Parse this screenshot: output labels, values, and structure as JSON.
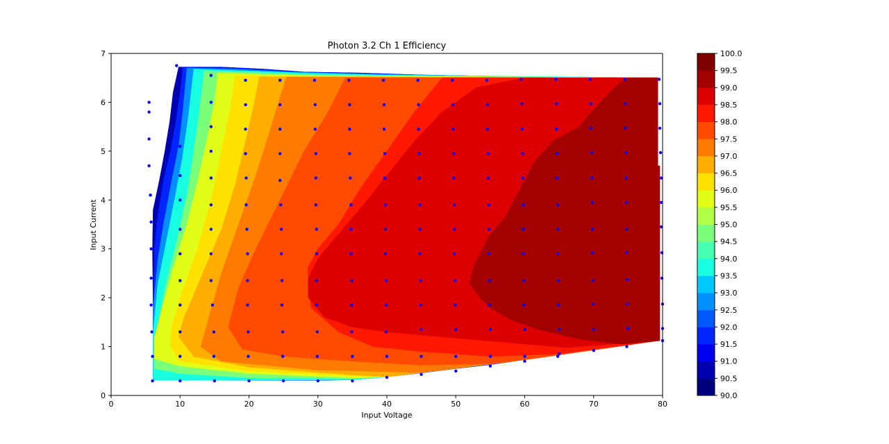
{
  "chart_data": {
    "type": "contour",
    "title": "Photon 3.2 Ch 1 Efficiency",
    "xlabel": "Input Voltage",
    "ylabel": "Input Current",
    "xlim": [
      0,
      80
    ],
    "ylim": [
      0,
      7
    ],
    "xticks": [
      "0",
      "10",
      "20",
      "30",
      "40",
      "50",
      "60",
      "70",
      "80"
    ],
    "yticks": [
      "0",
      "1",
      "2",
      "3",
      "4",
      "5",
      "6",
      "7"
    ],
    "colorbar_levels": [
      "90.0",
      "90.5",
      "91.0",
      "91.5",
      "92.0",
      "92.5",
      "93.0",
      "93.5",
      "94.0",
      "94.5",
      "95.0",
      "95.5",
      "96.0",
      "96.5",
      "97.0",
      "97.5",
      "98.0",
      "98.5",
      "99.0",
      "99.5",
      "100.0"
    ],
    "colorbar_colors": [
      "#00007f",
      "#0000b2",
      "#0000f0",
      "#0024ff",
      "#0058ff",
      "#0090ff",
      "#00c8ff",
      "#16ffe1",
      "#46ffb1",
      "#7bff7b",
      "#b1ff46",
      "#e1ff16",
      "#ffe200",
      "#ffad00",
      "#ff7a00",
      "#ff4a00",
      "#ff1800",
      "#dd0000",
      "#a30000",
      "#800000"
    ],
    "colormap": "jet",
    "grid": false,
    "measurement_points": [
      [
        5.5,
        6.0
      ],
      [
        5.5,
        5.8
      ],
      [
        5.5,
        5.25
      ],
      [
        5.5,
        4.7
      ],
      [
        5.7,
        4.1
      ],
      [
        5.8,
        3.55
      ],
      [
        5.8,
        3.0
      ],
      [
        5.8,
        2.4
      ],
      [
        5.8,
        1.85
      ],
      [
        5.9,
        1.3
      ],
      [
        6.0,
        0.8
      ],
      [
        6.0,
        0.3
      ],
      [
        9.5,
        6.75
      ],
      [
        10,
        5.1
      ],
      [
        10,
        4.5
      ],
      [
        10,
        4.0
      ],
      [
        10,
        3.4
      ],
      [
        10,
        2.9
      ],
      [
        10,
        2.35
      ],
      [
        10,
        1.85
      ],
      [
        10,
        1.3
      ],
      [
        10,
        0.8
      ],
      [
        10,
        0.3
      ],
      [
        14.5,
        6.55
      ],
      [
        14.5,
        6.0
      ],
      [
        14.5,
        5.5
      ],
      [
        14.5,
        5.0
      ],
      [
        14.5,
        4.45
      ],
      [
        14.5,
        3.9
      ],
      [
        14.5,
        3.4
      ],
      [
        14.5,
        2.9
      ],
      [
        14.5,
        2.35
      ],
      [
        14.7,
        1.85
      ],
      [
        14.9,
        1.3
      ],
      [
        14.9,
        0.8
      ],
      [
        15,
        0.3
      ],
      [
        19.5,
        6.45
      ],
      [
        19.5,
        5.95
      ],
      [
        19.5,
        5.45
      ],
      [
        19.5,
        4.95
      ],
      [
        19.6,
        4.45
      ],
      [
        19.6,
        3.9
      ],
      [
        19.7,
        3.4
      ],
      [
        19.8,
        2.9
      ],
      [
        19.8,
        2.35
      ],
      [
        19.8,
        1.85
      ],
      [
        19.9,
        1.3
      ],
      [
        19.9,
        0.8
      ],
      [
        20,
        0.3
      ],
      [
        24.5,
        6.45
      ],
      [
        24.5,
        5.95
      ],
      [
        24.5,
        5.45
      ],
      [
        24.5,
        4.95
      ],
      [
        24.5,
        4.4
      ],
      [
        24.6,
        3.9
      ],
      [
        24.7,
        3.4
      ],
      [
        24.7,
        2.9
      ],
      [
        24.8,
        2.35
      ],
      [
        24.8,
        1.85
      ],
      [
        24.9,
        1.3
      ],
      [
        24.9,
        0.8
      ],
      [
        25,
        0.3
      ],
      [
        29.5,
        6.45
      ],
      [
        29.6,
        5.95
      ],
      [
        29.6,
        5.45
      ],
      [
        29.7,
        4.95
      ],
      [
        29.7,
        4.45
      ],
      [
        29.7,
        3.9
      ],
      [
        29.8,
        3.4
      ],
      [
        29.8,
        2.9
      ],
      [
        29.8,
        2.35
      ],
      [
        29.8,
        1.85
      ],
      [
        29.9,
        1.3
      ],
      [
        29.9,
        0.8
      ],
      [
        30,
        0.3
      ],
      [
        34.5,
        6.45
      ],
      [
        34.6,
        5.95
      ],
      [
        34.6,
        5.45
      ],
      [
        34.6,
        4.95
      ],
      [
        34.7,
        4.45
      ],
      [
        34.8,
        3.9
      ],
      [
        34.8,
        3.4
      ],
      [
        34.8,
        2.9
      ],
      [
        34.9,
        2.35
      ],
      [
        34.9,
        1.85
      ],
      [
        34.9,
        1.3
      ],
      [
        35,
        0.8
      ],
      [
        35,
        0.3
      ],
      [
        39.5,
        6.45
      ],
      [
        39.6,
        5.95
      ],
      [
        39.6,
        5.45
      ],
      [
        39.7,
        4.95
      ],
      [
        39.7,
        4.45
      ],
      [
        39.8,
        3.9
      ],
      [
        39.8,
        3.4
      ],
      [
        39.8,
        2.9
      ],
      [
        39.9,
        2.35
      ],
      [
        39.9,
        1.85
      ],
      [
        39.9,
        1.3
      ],
      [
        40,
        0.8
      ],
      [
        40,
        0.37
      ],
      [
        44.5,
        6.45
      ],
      [
        44.6,
        5.95
      ],
      [
        44.6,
        5.45
      ],
      [
        44.7,
        4.95
      ],
      [
        44.7,
        4.45
      ],
      [
        44.8,
        3.9
      ],
      [
        44.8,
        3.4
      ],
      [
        44.8,
        2.9
      ],
      [
        44.9,
        2.35
      ],
      [
        44.9,
        1.85
      ],
      [
        45,
        1.35
      ],
      [
        45,
        0.8
      ],
      [
        45,
        0.43
      ],
      [
        49.5,
        6.45
      ],
      [
        49.6,
        5.95
      ],
      [
        49.6,
        5.45
      ],
      [
        49.7,
        4.95
      ],
      [
        49.7,
        4.45
      ],
      [
        49.8,
        3.9
      ],
      [
        49.8,
        3.4
      ],
      [
        49.8,
        2.9
      ],
      [
        49.9,
        2.35
      ],
      [
        49.9,
        1.85
      ],
      [
        50,
        1.35
      ],
      [
        50,
        0.8
      ],
      [
        50,
        0.5
      ],
      [
        54.5,
        6.45
      ],
      [
        54.6,
        5.95
      ],
      [
        54.6,
        5.45
      ],
      [
        54.7,
        4.95
      ],
      [
        54.7,
        4.45
      ],
      [
        54.8,
        3.9
      ],
      [
        54.8,
        3.4
      ],
      [
        54.8,
        2.9
      ],
      [
        54.9,
        2.35
      ],
      [
        54.9,
        1.85
      ],
      [
        55,
        1.35
      ],
      [
        55,
        0.8
      ],
      [
        55,
        0.6
      ],
      [
        59.5,
        6.47
      ],
      [
        59.6,
        5.97
      ],
      [
        59.6,
        5.45
      ],
      [
        59.7,
        4.95
      ],
      [
        59.7,
        4.45
      ],
      [
        59.8,
        3.9
      ],
      [
        59.8,
        3.4
      ],
      [
        59.8,
        2.9
      ],
      [
        59.9,
        2.35
      ],
      [
        59.9,
        1.85
      ],
      [
        60,
        1.35
      ],
      [
        60,
        0.8
      ],
      [
        60,
        0.7
      ],
      [
        64.5,
        6.47
      ],
      [
        64.6,
        5.97
      ],
      [
        64.6,
        5.45
      ],
      [
        64.7,
        4.95
      ],
      [
        64.7,
        4.45
      ],
      [
        64.8,
        3.9
      ],
      [
        64.8,
        3.4
      ],
      [
        64.8,
        2.9
      ],
      [
        64.9,
        2.35
      ],
      [
        64.9,
        1.85
      ],
      [
        65,
        1.35
      ],
      [
        65,
        0.85
      ],
      [
        64.8,
        0.8
      ],
      [
        69.5,
        6.47
      ],
      [
        69.6,
        5.97
      ],
      [
        69.6,
        5.47
      ],
      [
        69.7,
        4.97
      ],
      [
        69.7,
        4.45
      ],
      [
        69.8,
        3.95
      ],
      [
        69.8,
        3.4
      ],
      [
        69.8,
        2.92
      ],
      [
        69.9,
        2.35
      ],
      [
        69.9,
        1.87
      ],
      [
        70,
        1.35
      ],
      [
        70,
        0.92
      ],
      [
        74.5,
        6.47
      ],
      [
        74.6,
        5.97
      ],
      [
        74.6,
        5.47
      ],
      [
        74.7,
        4.97
      ],
      [
        74.7,
        4.45
      ],
      [
        74.8,
        3.95
      ],
      [
        74.8,
        3.4
      ],
      [
        74.8,
        2.92
      ],
      [
        74.9,
        2.37
      ],
      [
        74.9,
        1.87
      ],
      [
        75,
        1.37
      ],
      [
        74.8,
        1.0
      ],
      [
        79.5,
        6.47
      ],
      [
        79.6,
        5.97
      ],
      [
        79.6,
        5.47
      ],
      [
        79.7,
        4.97
      ],
      [
        79.8,
        4.45
      ],
      [
        79.8,
        3.95
      ],
      [
        79.8,
        3.45
      ],
      [
        79.9,
        2.92
      ],
      [
        79.9,
        2.4
      ],
      [
        80,
        1.87
      ],
      [
        80,
        1.37
      ],
      [
        80,
        1.12
      ]
    ]
  }
}
